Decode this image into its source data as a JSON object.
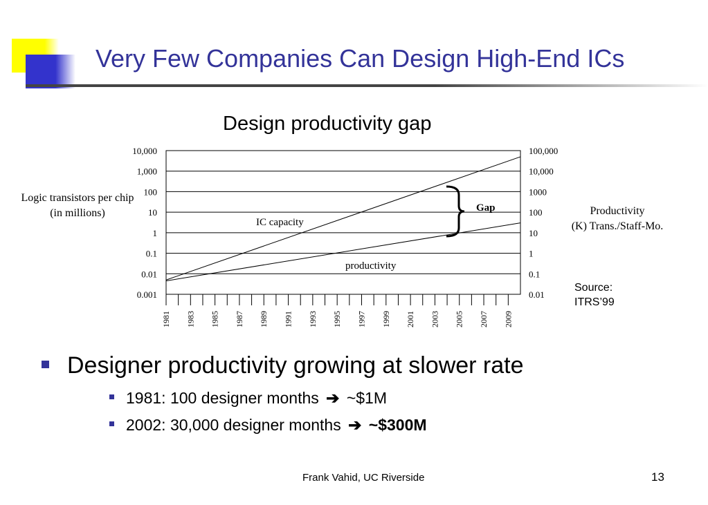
{
  "slide": {
    "title": "Very Few Companies Can Design High-End ICs",
    "footer": "Frank Vahid, UC Riverside",
    "page_number": "13"
  },
  "chart_data": {
    "type": "line",
    "title": "Design productivity gap",
    "ylabel_left": [
      "Logic transistors per chip",
      "(in millions)"
    ],
    "ylabel_right": [
      "Productivity",
      "(K) Trans./Staff-Mo."
    ],
    "y_left_ticks": [
      "10,000",
      "1,000",
      "100",
      "10",
      "1",
      "0.1",
      "0.01",
      "0.001"
    ],
    "y_right_ticks": [
      "100,000",
      "10,000",
      "1000",
      "100",
      "10",
      "1",
      "0.1",
      "0.01"
    ],
    "x_tick_labels": [
      "1981",
      "1983",
      "1985",
      "1987",
      "1989",
      "1991",
      "1993",
      "1995",
      "1997",
      "1999",
      "2001",
      "2003",
      "2005",
      "2007",
      "2009"
    ],
    "xlim": [
      1981,
      2010
    ],
    "ylim_left_log10": [
      -3,
      4
    ],
    "ylim_right_log10": [
      -2,
      5
    ],
    "y_scale": "log",
    "grid": "horizontal",
    "series": [
      {
        "name": "IC capacity",
        "axis": "left",
        "x": [
          1981,
          2010
        ],
        "y": [
          0.005,
          5000
        ]
      },
      {
        "name": "productivity",
        "axis": "right",
        "x": [
          1981,
          2010
        ],
        "y": [
          0.045,
          30
        ]
      }
    ],
    "annotations": [
      {
        "text": "Gap",
        "x": 2005,
        "type": "brace"
      }
    ],
    "source": [
      "Source:",
      "ITRS’99"
    ]
  },
  "bullets": {
    "main": "Designer productivity growing at slower rate",
    "sub1_text": "1981: 100 designer months",
    "sub1_result": "~$1M",
    "sub2_text": "2002: 30,000 designer months",
    "sub2_result": "~$300M"
  },
  "colors": {
    "title": "#333399",
    "accent_yellow": "#ffff00",
    "accent_blue": "#3333cc",
    "bullet": "#333399",
    "chart_lines": "#000000"
  }
}
